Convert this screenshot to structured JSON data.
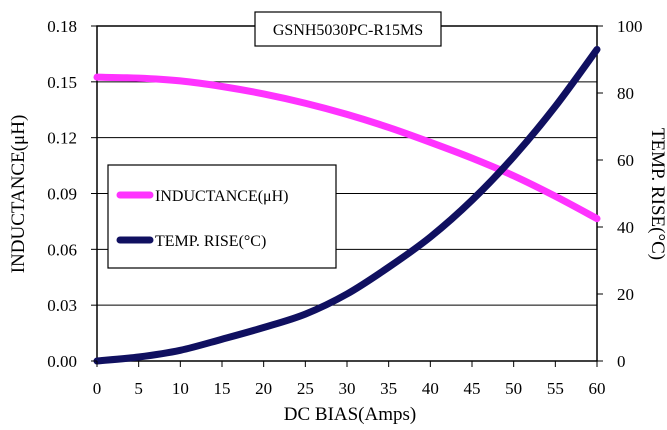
{
  "chart_data": {
    "type": "line",
    "title": "GSNH5030PC-R15MS",
    "xlabel": "DC BIAS(Amps)",
    "ylabel_left": "INDUCTANCE(μH)",
    "ylabel_right": "TEMP. RISE(°C)",
    "x_ticks": [
      0,
      5,
      10,
      15,
      20,
      25,
      30,
      35,
      40,
      45,
      50,
      55,
      60
    ],
    "y_left_ticks": [
      "0.00",
      "0.03",
      "0.06",
      "0.09",
      "0.12",
      "0.15",
      "0.18"
    ],
    "y_right_ticks": [
      "0",
      "20",
      "40",
      "60",
      "80",
      "100"
    ],
    "xlim": [
      0,
      60
    ],
    "ylim_left": [
      0,
      0.18
    ],
    "ylim_right": [
      0,
      100
    ],
    "grid": "horizontal",
    "legend_position": "center-left",
    "series": [
      {
        "name": "INDUCTANCE(μH)",
        "axis": "left",
        "color": "#ff33ff",
        "x": [
          0,
          5,
          10,
          15,
          20,
          25,
          30,
          35,
          40,
          45,
          50,
          55,
          60
        ],
        "values": [
          0.1525,
          0.152,
          0.1505,
          0.1475,
          0.1435,
          0.1385,
          0.1325,
          0.1255,
          0.1175,
          0.109,
          0.0995,
          0.0885,
          0.0765
        ]
      },
      {
        "name": "TEMP. RISE(°C)",
        "axis": "right",
        "color": "#101060",
        "x": [
          0,
          5,
          10,
          15,
          20,
          25,
          30,
          35,
          40,
          45,
          50,
          55,
          60
        ],
        "values": [
          0,
          1.2,
          3.2,
          6.5,
          10,
          14,
          20,
          28,
          37,
          48,
          61,
          76,
          93
        ]
      }
    ]
  }
}
